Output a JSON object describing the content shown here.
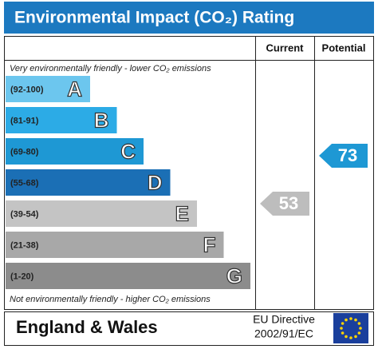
{
  "header": {
    "title": "Environmental Impact (CO₂) Rating"
  },
  "columns": {
    "current": "Current",
    "potential": "Potential"
  },
  "top_note": "Very environmentally friendly - lower CO₂ emissions",
  "bottom_note": "Not environmentally friendly - higher CO₂ emissions",
  "bands": [
    {
      "range": "(92-100)",
      "letter": "A",
      "color": "#6cc6ee"
    },
    {
      "range": "(81-91)",
      "letter": "B",
      "color": "#2cabe6"
    },
    {
      "range": "(69-80)",
      "letter": "C",
      "color": "#1e98d4"
    },
    {
      "range": "(55-68)",
      "letter": "D",
      "color": "#1b6fb5"
    },
    {
      "range": "(39-54)",
      "letter": "E",
      "color": "#c4c4c4"
    },
    {
      "range": "(21-38)",
      "letter": "F",
      "color": "#a8a8a8"
    },
    {
      "range": "(1-20)",
      "letter": "G",
      "color": "#8c8c8c"
    }
  ],
  "current": {
    "value": 53,
    "color": "#bdbdbd"
  },
  "potential": {
    "value": 73,
    "color": "#1e98d4"
  },
  "footer": {
    "region": "England & Wales",
    "directive_line1": "EU Directive",
    "directive_line2": "2002/91/EC"
  }
}
